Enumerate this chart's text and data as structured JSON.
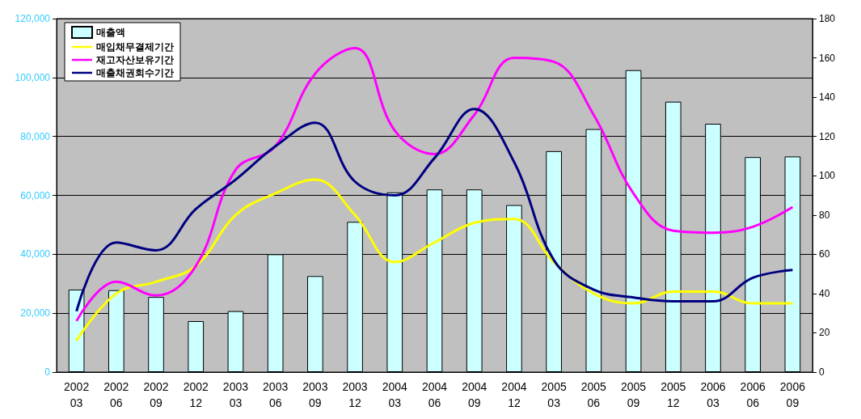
{
  "chart_data": {
    "type": "bar",
    "categories": [
      "2002\n03",
      "2002\n06",
      "2002\n09",
      "2002\n12",
      "2003\n03",
      "2003\n06",
      "2003\n09",
      "2003\n12",
      "2004\n03",
      "2004\n06",
      "2004\n09",
      "2004\n12",
      "2005\n03",
      "2005\n06",
      "2005\n09",
      "2005\n12",
      "2006\n03",
      "2006\n06",
      "2006\n09"
    ],
    "series": [
      {
        "name": "매출액",
        "color": "#ccffff",
        "values": [
          28000,
          27800,
          25500,
          17300,
          20700,
          40000,
          32600,
          51000,
          61000,
          62000,
          62000,
          56700,
          75000,
          82500,
          102500,
          91800,
          84300,
          73000,
          73200
        ]
      },
      {
        "name": "매입채무결제기간",
        "type": "line",
        "axis": "y2",
        "color": "#ffff00",
        "values": [
          16,
          40,
          46,
          54,
          80,
          91,
          98,
          80,
          56,
          66,
          76,
          78,
          56,
          40,
          35,
          41,
          41,
          35,
          35
        ]
      },
      {
        "name": "재고자산보유기간",
        "type": "line",
        "axis": "y2",
        "color": "#ff00ff",
        "values": [
          26,
          46,
          39,
          54,
          103,
          115,
          152,
          165,
          123,
          111,
          131,
          160,
          158,
          131,
          91,
          72,
          71,
          74,
          84
        ]
      },
      {
        "name": "매출채권회수기간",
        "type": "line",
        "axis": "y2",
        "color": "#000080",
        "values": [
          31,
          66,
          62,
          83,
          98,
          115,
          127,
          97,
          90,
          109,
          134,
          107,
          57,
          42,
          38,
          36,
          36,
          48,
          52
        ]
      }
    ],
    "ylim": [
      0,
      120000
    ],
    "yticks": [
      0,
      {
        "value": 20000,
        "label": "20,000"
      },
      {
        "value": 40000,
        "label": "40,000"
      },
      {
        "value": 60000,
        "label": "60,000"
      },
      {
        "value": 80000,
        "label": "80,000"
      },
      {
        "value": 100000,
        "label": "100,000"
      },
      {
        "value": 120000,
        "label": "120,000"
      }
    ],
    "y2lim": [
      0,
      180
    ],
    "y2ticks": [
      0,
      20,
      40,
      60,
      80,
      100,
      120,
      140,
      160,
      180
    ],
    "grid": "y",
    "legend": "top left",
    "marker": "none"
  }
}
